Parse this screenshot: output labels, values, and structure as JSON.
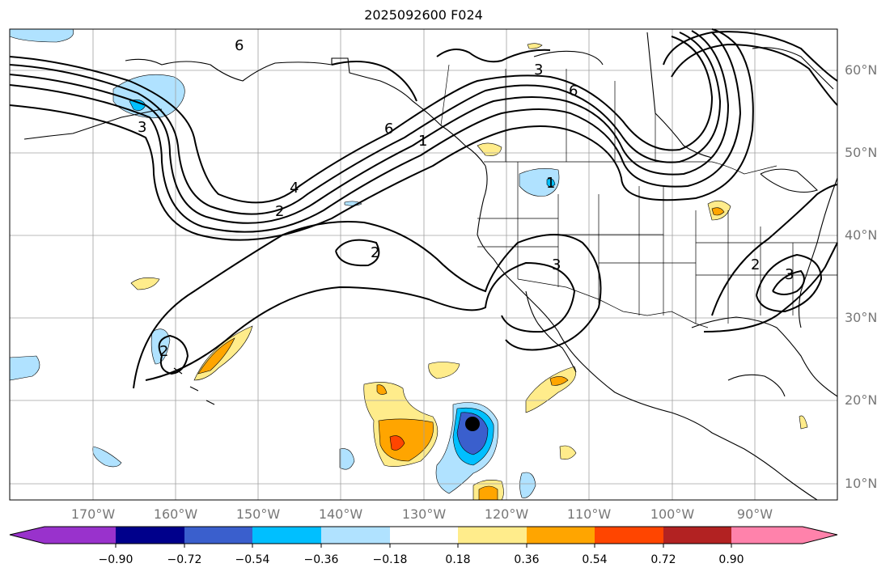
{
  "title": "2025092600 F024",
  "lat_labels": [
    "60°N",
    "50°N",
    "40°N",
    "30°N",
    "20°N",
    "10°N"
  ],
  "lon_labels": [
    "170°W",
    "160°W",
    "150°W",
    "140°W",
    "130°W",
    "120°W",
    "110°W",
    "100°W",
    "90°W"
  ],
  "contour_labels": [
    "6",
    "6",
    "6",
    "3",
    "3",
    "1",
    "4",
    "2",
    "2",
    "2",
    "3",
    "2",
    "3",
    "1"
  ],
  "colorbar": {
    "ticks": [
      "−0.90",
      "−0.72",
      "−0.54",
      "−0.36",
      "−0.18",
      "0.18",
      "0.36",
      "0.54",
      "0.72",
      "0.90"
    ],
    "colors": [
      "#9932cc",
      "#00008b",
      "#3a5fcd",
      "#00bfff",
      "#b0e2ff",
      "#ffffff",
      "#ffec8b",
      "#ffa500",
      "#ff4500",
      "#b22222",
      "#ff82ab"
    ]
  },
  "legend_colors": {
    "neg_strong": "#3a5fcd",
    "neg_mid": "#00bfff",
    "neg_weak": "#b0e2ff",
    "pos_weak": "#ffec8b",
    "pos_mid": "#ffa500",
    "pos_strong": "#ff4500"
  },
  "marker": "storm-center-dot"
}
